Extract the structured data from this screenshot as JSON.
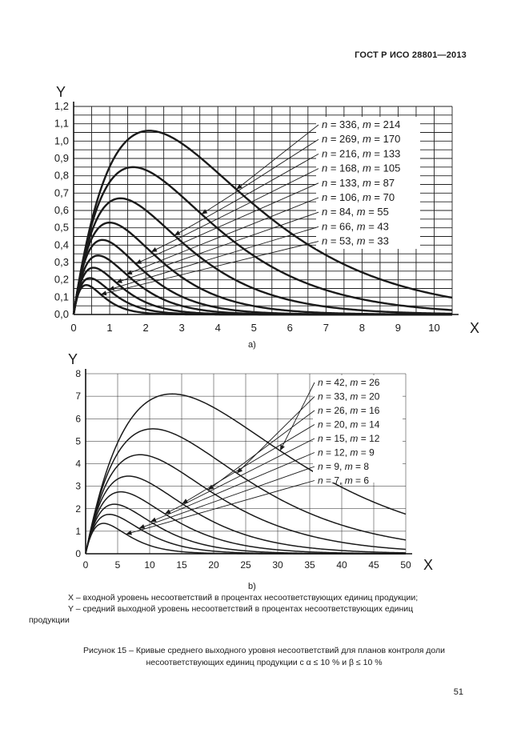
{
  "header": {
    "doc_id": "ГОСТ Р ИСО 28801—2013"
  },
  "chart_data": [
    {
      "type": "line",
      "subfigure": "a)",
      "xlabel": "X",
      "ylabel": "Y",
      "xlim": [
        0,
        10.5
      ],
      "ylim": [
        0,
        1.2
      ],
      "x_ticks": [
        "0",
        "1",
        "2",
        "3",
        "4",
        "5",
        "6",
        "7",
        "8",
        "9",
        "10"
      ],
      "y_ticks": [
        "0,0",
        "0,1",
        "0,2",
        "0,3",
        "0,4",
        "0,5",
        "0,6",
        "0,7",
        "0,8",
        "0,9",
        "1,0",
        "1,1",
        "1,2"
      ],
      "grid": true,
      "legend_placement": "right",
      "series": [
        {
          "n": "336",
          "m": "214",
          "peak_x": 2.1,
          "peak_y": 1.06
        },
        {
          "n": "269",
          "m": "170",
          "peak_x": 1.65,
          "peak_y": 0.85
        },
        {
          "n": "216",
          "m": "133",
          "peak_x": 1.3,
          "peak_y": 0.67
        },
        {
          "n": "168",
          "m": "105",
          "peak_x": 1.0,
          "peak_y": 0.53
        },
        {
          "n": "133",
          "m": "87",
          "peak_x": 0.8,
          "peak_y": 0.43
        },
        {
          "n": "106",
          "m": "70",
          "peak_x": 0.68,
          "peak_y": 0.34
        },
        {
          "n": "84",
          "m": "55",
          "peak_x": 0.55,
          "peak_y": 0.27
        },
        {
          "n": "66",
          "m": "43",
          "peak_x": 0.45,
          "peak_y": 0.21
        },
        {
          "n": "53",
          "m": "33",
          "peak_x": 0.35,
          "peak_y": 0.17
        }
      ]
    },
    {
      "type": "line",
      "subfigure": "b)",
      "xlabel": "X",
      "ylabel": "Y",
      "xlim": [
        0,
        50
      ],
      "ylim": [
        0,
        8
      ],
      "x_ticks": [
        "0",
        "5",
        "10",
        "15",
        "20",
        "25",
        "30",
        "35",
        "40",
        "45",
        "50"
      ],
      "y_ticks": [
        "0",
        "1",
        "2",
        "3",
        "4",
        "5",
        "6",
        "7",
        "8"
      ],
      "grid": true,
      "legend_placement": "top-right",
      "series": [
        {
          "n": "42",
          "m": "26",
          "peak_x": 13.5,
          "peak_y": 7.1
        },
        {
          "n": "33",
          "m": "20",
          "peak_x": 10.5,
          "peak_y": 5.55
        },
        {
          "n": "26",
          "m": "16",
          "peak_x": 8.5,
          "peak_y": 4.4
        },
        {
          "n": "20",
          "m": "14",
          "peak_x": 6.7,
          "peak_y": 3.45
        },
        {
          "n": "15",
          "m": "12",
          "peak_x": 5.5,
          "peak_y": 2.75
        },
        {
          "n": "12",
          "m": "9",
          "peak_x": 4.5,
          "peak_y": 2.2
        },
        {
          "n": "9",
          "m": "8",
          "peak_x": 3.7,
          "peak_y": 1.75
        },
        {
          "n": "7",
          "m": "6",
          "peak_x": 2.8,
          "peak_y": 1.35
        }
      ]
    }
  ],
  "notes": {
    "x_desc": "X – входной уровень несоответствий в процентах несоответствующих единиц продукции;",
    "y_desc_1": "Y – средний выходной уровень несоответствий в процентах несоответствующих единиц",
    "y_desc_2": "продукции"
  },
  "caption": {
    "line1": "Рисунок 15 – Кривые среднего выходного уровня несоответствий для планов контроля доли",
    "line2": "несоответствующих единиц продукции с α ≤ 10 % и β ≤ 10 %"
  },
  "page_number": "51"
}
